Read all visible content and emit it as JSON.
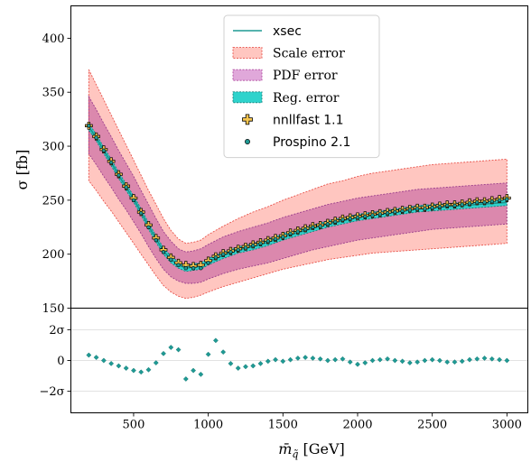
{
  "chart_data": [
    {
      "type": "line",
      "panel": "main",
      "ylabel": "σ [fb]",
      "xlim": [
        80,
        3140
      ],
      "ylim": [
        150,
        430
      ],
      "yticks": [
        150,
        200,
        250,
        300,
        350,
        400
      ],
      "ytick_labels": [
        "150",
        "200",
        "250",
        "300",
        "350",
        "400"
      ],
      "grid": false,
      "legend_position": "top-center",
      "legend": [
        {
          "label": "xsec",
          "kind": "line",
          "color": "#1f9a94"
        },
        {
          "label": "Scale error",
          "kind": "band",
          "color": "#ffc6c0",
          "edge": "#e8524a"
        },
        {
          "label": "PDF error",
          "kind": "band",
          "color": "#e0a8da",
          "edge": "#b04aa0"
        },
        {
          "label": "Reg. error",
          "kind": "band",
          "color": "#2ed3cc",
          "edge": "#1a7f7a"
        },
        {
          "label": "nnllfast 1.1",
          "kind": "plus-marker",
          "color": "#f5c550"
        },
        {
          "label": "Prospino 2.1",
          "kind": "dot-marker",
          "color": "#1f9a94"
        }
      ],
      "x": [
        200,
        250,
        300,
        350,
        400,
        450,
        500,
        550,
        600,
        650,
        700,
        750,
        800,
        850,
        900,
        950,
        1000,
        1100,
        1200,
        1300,
        1400,
        1500,
        1600,
        1700,
        1800,
        1900,
        2000,
        2100,
        2200,
        2300,
        2400,
        2500,
        2600,
        2700,
        2800,
        2900,
        3000
      ],
      "series": [
        {
          "name": "xsec",
          "values": [
            318,
            308,
            296,
            285,
            273,
            262,
            251,
            239,
            226,
            214,
            203,
            195,
            190,
            187,
            188,
            189,
            193,
            199,
            204,
            207,
            211,
            216,
            220,
            224,
            228,
            231,
            234,
            236,
            238,
            240,
            242,
            243,
            244,
            245,
            246,
            247,
            248
          ]
        },
        {
          "name": "Scale error upper",
          "values": [
            371,
            357,
            343,
            329,
            315,
            301,
            287,
            273,
            259,
            246,
            233,
            222,
            214,
            210,
            211,
            213,
            218,
            226,
            233,
            239,
            244,
            250,
            255,
            260,
            265,
            268,
            272,
            275,
            277,
            279,
            281,
            283,
            284,
            285,
            286,
            287,
            288
          ]
        },
        {
          "name": "Scale error lower",
          "values": [
            268,
            259,
            249,
            240,
            230,
            220,
            210,
            200,
            190,
            180,
            171,
            165,
            161,
            159,
            160,
            162,
            165,
            170,
            174,
            178,
            182,
            186,
            189,
            192,
            195,
            197,
            199,
            201,
            202,
            203,
            204,
            205,
            206,
            207,
            208,
            209,
            210
          ]
        },
        {
          "name": "PDF error upper",
          "values": [
            346,
            334,
            321,
            309,
            296,
            284,
            272,
            259,
            246,
            233,
            221,
            212,
            205,
            202,
            203,
            205,
            209,
            216,
            221,
            225,
            229,
            234,
            238,
            242,
            246,
            249,
            252,
            254,
            256,
            258,
            260,
            261,
            262,
            263,
            264,
            265,
            266
          ]
        },
        {
          "name": "PDF error lower",
          "values": [
            293,
            283,
            272,
            262,
            251,
            241,
            230,
            219,
            207,
            196,
            186,
            179,
            175,
            173,
            173,
            174,
            177,
            182,
            186,
            189,
            192,
            196,
            200,
            204,
            207,
            210,
            213,
            215,
            217,
            219,
            221,
            223,
            224,
            225,
            226,
            227,
            228
          ]
        },
        {
          "name": "Reg. error upper",
          "values": [
            321,
            311,
            299,
            288,
            276,
            265,
            254,
            242,
            229,
            217,
            206,
            198,
            193,
            190,
            191,
            192,
            196,
            202,
            207,
            210,
            214,
            219,
            223,
            227,
            231,
            234,
            237,
            239,
            241,
            243,
            245,
            246,
            247,
            248,
            249,
            250,
            251
          ]
        },
        {
          "name": "Reg. error lower",
          "values": [
            315,
            305,
            293,
            282,
            270,
            259,
            248,
            236,
            223,
            211,
            200,
            192,
            187,
            184,
            185,
            186,
            190,
            196,
            201,
            204,
            208,
            213,
            217,
            221,
            225,
            228,
            231,
            233,
            235,
            237,
            239,
            240,
            241,
            242,
            243,
            244,
            245
          ]
        }
      ],
      "nnllfast": {
        "x": [
          200,
          250,
          300,
          350,
          400,
          450,
          500,
          550,
          600,
          650,
          700,
          750,
          800,
          850,
          900,
          950,
          1000,
          1050,
          1100,
          1150,
          1200,
          1250,
          1300,
          1350,
          1400,
          1450,
          1500,
          1550,
          1600,
          1650,
          1700,
          1750,
          1800,
          1850,
          1900,
          1950,
          2000,
          2050,
          2100,
          2150,
          2200,
          2250,
          2300,
          2350,
          2400,
          2450,
          2500,
          2550,
          2600,
          2650,
          2700,
          2750,
          2800,
          2850,
          2900,
          2950,
          3000
        ],
        "y": [
          319,
          309,
          297,
          286,
          274,
          263,
          252,
          239,
          227,
          215,
          204,
          197,
          192,
          190,
          189,
          190,
          194,
          198,
          201,
          203,
          205,
          207,
          209,
          211,
          213,
          215,
          217,
          220,
          222,
          224,
          226,
          227,
          229,
          231,
          233,
          234,
          235,
          236,
          237,
          238,
          239,
          240,
          241,
          242,
          243,
          243,
          244,
          245,
          246,
          246,
          247,
          248,
          249,
          249,
          250,
          251,
          252
        ]
      },
      "prospino": {
        "x": [
          200,
          250,
          300,
          350,
          400,
          450,
          500,
          550,
          600,
          650,
          700,
          750,
          800,
          850,
          900,
          950,
          1000,
          1050,
          1100,
          1150,
          1200,
          1250,
          1300,
          1350,
          1400,
          1450,
          1500,
          1550,
          1600,
          1650,
          1700,
          1750,
          1800,
          1850,
          1900,
          1950,
          2000,
          2050,
          2100,
          2150,
          2200,
          2250,
          2300,
          2350,
          2400,
          2450,
          2500,
          2550,
          2600,
          2650,
          2700,
          2750,
          2800,
          2850,
          2900,
          2950,
          3000
        ],
        "y": [
          319,
          308,
          296,
          285,
          273,
          262,
          250,
          238,
          225,
          213,
          202,
          195,
          190,
          187,
          187,
          187,
          192,
          197,
          200,
          202,
          204,
          206,
          208,
          210,
          212,
          214,
          216,
          219,
          221,
          223,
          225,
          226,
          228,
          230,
          232,
          233,
          234,
          235,
          236,
          237,
          238,
          239,
          240,
          241,
          242,
          242,
          243,
          244,
          245,
          245,
          246,
          247,
          248,
          248,
          249,
          250,
          251
        ]
      }
    },
    {
      "type": "scatter",
      "panel": "ratio",
      "xlabel": "m̄",
      "xlabel_sub": "q̃",
      "xlabel_unit": "[GeV]",
      "xlim": [
        80,
        3140
      ],
      "ylim": [
        -3.4,
        3.4
      ],
      "xticks": [
        500,
        1000,
        1500,
        2000,
        2500,
        3000
      ],
      "xtick_labels": [
        "500",
        "1000",
        "1500",
        "2000",
        "2500",
        "3000"
      ],
      "yticks": [
        2,
        0,
        -2
      ],
      "ytick_labels": [
        "2σ",
        "0",
        "−2σ"
      ],
      "grid": "horizontal",
      "color": "#1f9a94",
      "x": [
        200,
        250,
        300,
        350,
        400,
        450,
        500,
        550,
        600,
        650,
        700,
        750,
        800,
        850,
        900,
        950,
        1000,
        1050,
        1100,
        1150,
        1200,
        1250,
        1300,
        1350,
        1400,
        1450,
        1500,
        1550,
        1600,
        1650,
        1700,
        1750,
        1800,
        1850,
        1900,
        1950,
        2000,
        2050,
        2100,
        2150,
        2200,
        2250,
        2300,
        2350,
        2400,
        2450,
        2500,
        2550,
        2600,
        2650,
        2700,
        2750,
        2800,
        2850,
        2900,
        2950,
        3000
      ],
      "y": [
        0.35,
        0.2,
        0.0,
        -0.2,
        -0.35,
        -0.5,
        -0.65,
        -0.75,
        -0.6,
        -0.15,
        0.45,
        0.85,
        0.7,
        -1.2,
        -0.65,
        -0.9,
        0.4,
        1.3,
        0.55,
        -0.2,
        -0.5,
        -0.4,
        -0.35,
        -0.2,
        -0.05,
        0.05,
        -0.05,
        0.05,
        0.15,
        0.2,
        0.15,
        0.1,
        0.0,
        0.05,
        0.1,
        -0.1,
        -0.25,
        -0.15,
        0.0,
        0.05,
        0.1,
        0.0,
        -0.05,
        -0.15,
        -0.1,
        0.0,
        0.05,
        0.0,
        -0.1,
        -0.1,
        -0.05,
        0.05,
        0.1,
        0.15,
        0.1,
        0.05,
        0.0
      ]
    }
  ]
}
